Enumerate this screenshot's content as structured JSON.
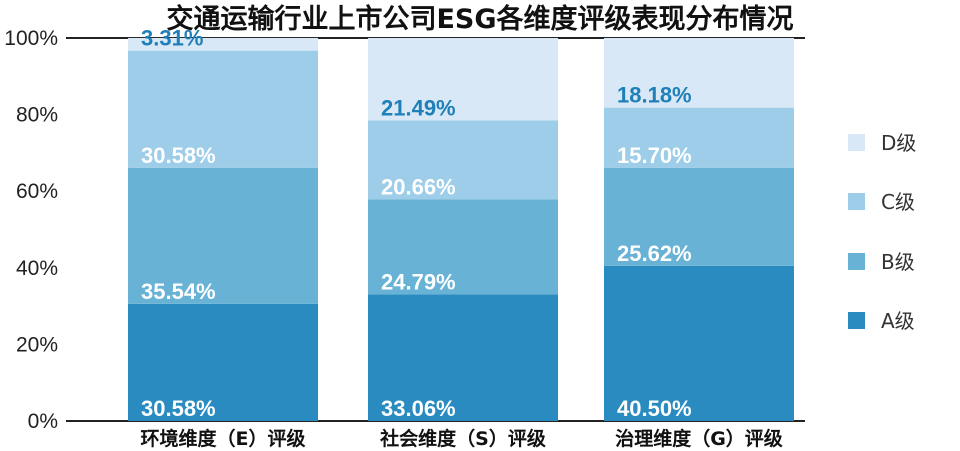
{
  "chart_data": {
    "type": "bar",
    "stacked": true,
    "title": "交通运输行业上市公司ESG各维度评级表现分布情况",
    "xlabel": "",
    "ylabel": "",
    "ylim": [
      0,
      100
    ],
    "yticks": [
      "0%",
      "20%",
      "40%",
      "60%",
      "80%",
      "100%"
    ],
    "categories": [
      "环境维度（E）评级",
      "社会维度（S）评级",
      "治理维度（G）评级"
    ],
    "series": [
      {
        "name": "A级",
        "color": "#2a8bc1",
        "values": [
          30.58,
          33.06,
          40.5
        ],
        "labels": [
          "30.58%",
          "33.06%",
          "40.50%"
        ],
        "label_color": "#ffffff"
      },
      {
        "name": "B级",
        "color": "#68b2d6",
        "values": [
          35.54,
          24.79,
          25.62
        ],
        "labels": [
          "35.54%",
          "24.79%",
          "25.62%"
        ],
        "label_color": "#ffffff"
      },
      {
        "name": "C级",
        "color": "#9dcde8",
        "values": [
          30.58,
          20.66,
          15.7
        ],
        "labels": [
          "30.58%",
          "20.66%",
          "15.70%"
        ],
        "label_color": "#ffffff"
      },
      {
        "name": "D级",
        "color": "#d8e8f6",
        "values": [
          3.31,
          21.49,
          18.18
        ],
        "labels": [
          "3.31%",
          "21.49%",
          "18.18%"
        ],
        "label_color": "#1f7fb8"
      }
    ],
    "legend": {
      "placement": "right",
      "order": [
        "D级",
        "C级",
        "B级",
        "A级"
      ]
    },
    "grid": false
  }
}
